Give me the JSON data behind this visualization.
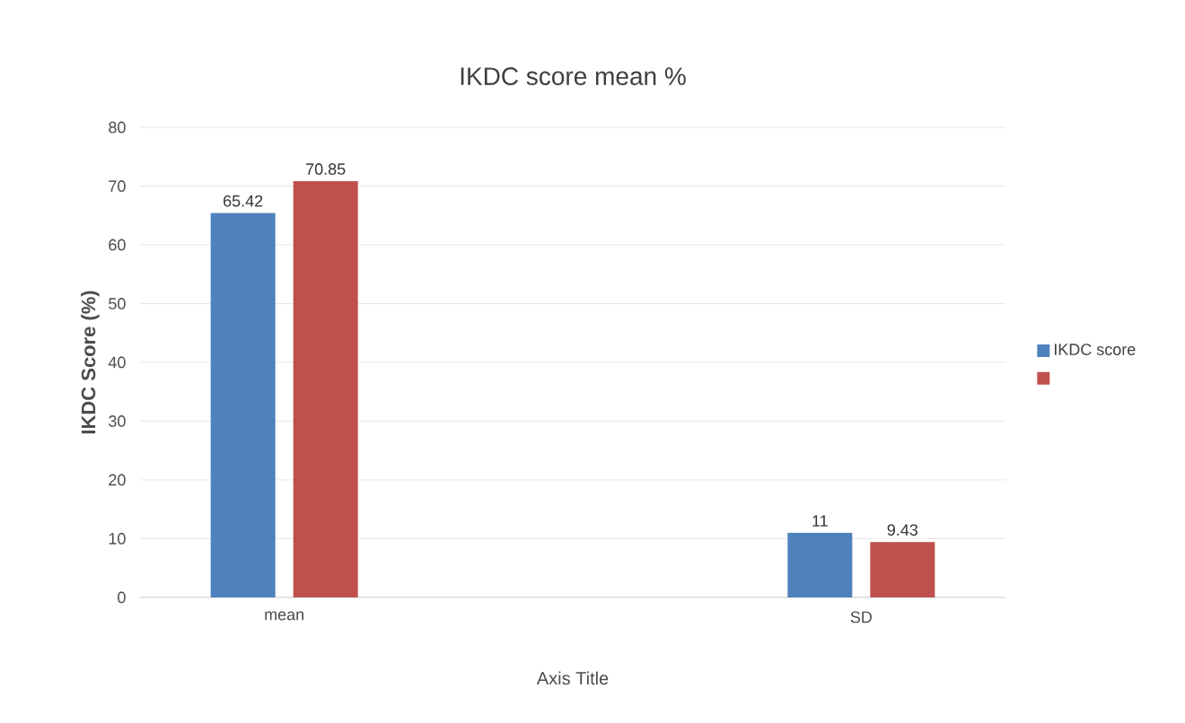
{
  "chart_data": {
    "type": "bar",
    "title": "IKDC score mean %",
    "xlabel": "Axis Title",
    "ylabel": "IKDC Score (%)",
    "categories": [
      "mean",
      null,
      "SD"
    ],
    "series": [
      {
        "name": "IKDC score",
        "color": "#4f81bd",
        "values": [
          65.42,
          null,
          11
        ]
      },
      {
        "color": "#c0504d",
        "values": [
          70.85,
          null,
          9.43
        ]
      }
    ],
    "ylim": [
      0,
      80
    ],
    "yticks": [
      0,
      10,
      20,
      30,
      40,
      50,
      60,
      70,
      80
    ],
    "grid": "y",
    "legend": "right",
    "data_labels": true
  }
}
